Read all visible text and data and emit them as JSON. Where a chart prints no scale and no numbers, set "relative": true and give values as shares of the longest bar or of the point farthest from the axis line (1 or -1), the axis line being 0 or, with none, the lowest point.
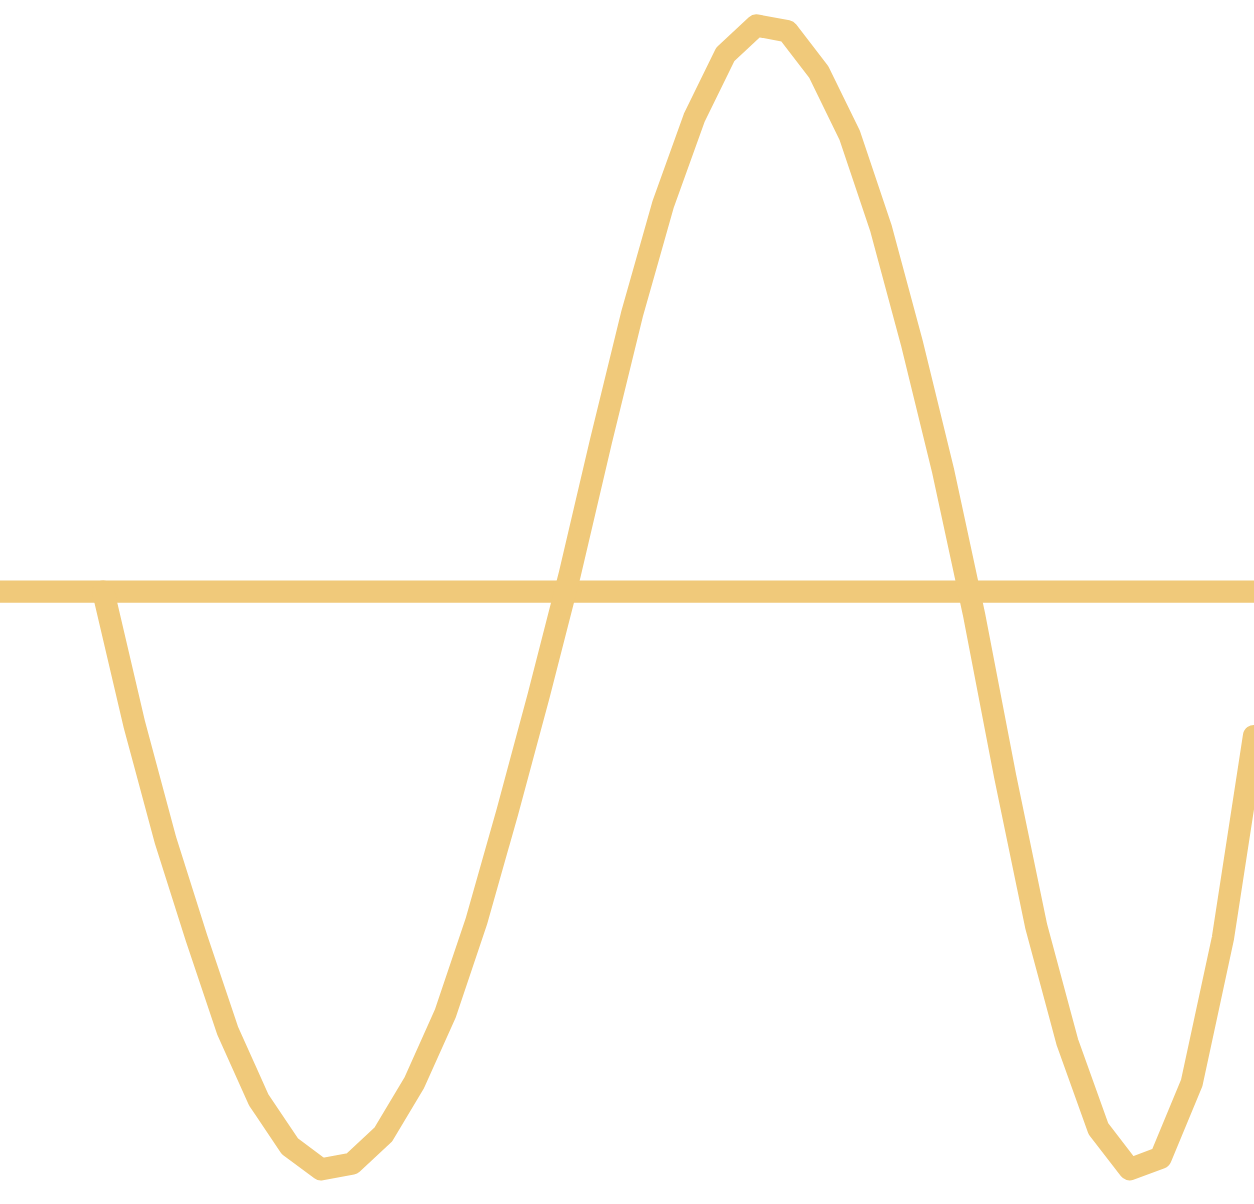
{
  "chart_data": {
    "type": "line",
    "relative": true,
    "categories": [
      null,
      null,
      null,
      null,
      null,
      null,
      null,
      null,
      null,
      null,
      null,
      null,
      null,
      null,
      null,
      null,
      null,
      null,
      null,
      null,
      null,
      null,
      null,
      null,
      null,
      null,
      null,
      null,
      null,
      null,
      null,
      null,
      null,
      null,
      null,
      null,
      null,
      null,
      null,
      null,
      null
    ],
    "series": [
      {
        "color": "#f0c97a",
        "values": [
          null,
          null,
          null,
          0,
          -0.23,
          -0.43,
          -0.6,
          -0.76,
          -0.88,
          -0.96,
          -1.0,
          -0.99,
          -0.94,
          -0.85,
          -0.73,
          -0.57,
          -0.38,
          -0.18,
          0.03,
          0.26,
          0.48,
          0.67,
          0.82,
          0.93,
          0.98,
          0.97,
          0.9,
          0.79,
          0.63,
          0.43,
          0.21,
          -0.04,
          -0.32,
          -0.58,
          -0.78,
          -0.93,
          -1.0,
          -0.98,
          -0.85,
          -0.6,
          -0.25
        ]
      }
    ],
    "ref_lines": [
      {
        "axis": "y",
        "value": 0,
        "color": "#f0c97a",
        "line_style": "solid"
      }
    ],
    "line_style": "solid"
  }
}
